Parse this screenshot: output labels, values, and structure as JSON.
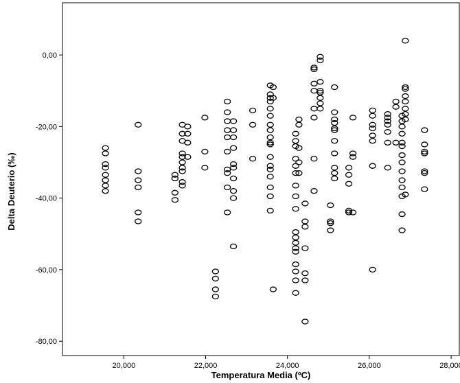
{
  "chart_data": {
    "type": "scatter",
    "title": "",
    "xlabel": "Temperatura Media (ºC)",
    "ylabel": "Delta Deuterio (‰)",
    "xlim": [
      18500,
      28200
    ],
    "ylim": [
      -84,
      14.6
    ],
    "xticks": [
      20000,
      22000,
      24000,
      26000,
      28000
    ],
    "xtick_labels": [
      "20,000",
      "22,000",
      "24,000",
      "26,000",
      "28,000"
    ],
    "yticks": [
      0,
      -20,
      -40,
      -60,
      -80
    ],
    "ytick_labels": [
      "0,00",
      "-20,00",
      "-40,00",
      "-60,00",
      "-80,00"
    ],
    "grid": false,
    "marker": "open-circle",
    "series": [
      {
        "points": [
          [
            19550,
            -26
          ],
          [
            19550,
            -27.5
          ],
          [
            19550,
            -30.5
          ],
          [
            19550,
            -31.5
          ],
          [
            19550,
            -33.5
          ],
          [
            19550,
            -35
          ],
          [
            19550,
            -36.5
          ],
          [
            19550,
            -38
          ],
          [
            20350,
            -19.5
          ],
          [
            20350,
            -32.5
          ],
          [
            20350,
            -35
          ],
          [
            20350,
            -37
          ],
          [
            20350,
            -44
          ],
          [
            20350,
            -46.5
          ],
          [
            21250,
            -33.5
          ],
          [
            21250,
            -34.5
          ],
          [
            21250,
            -38.5
          ],
          [
            21250,
            -40.5
          ],
          [
            21430,
            -19.5
          ],
          [
            21430,
            -22
          ],
          [
            21430,
            -24
          ],
          [
            21430,
            -27.5
          ],
          [
            21430,
            -28.5
          ],
          [
            21430,
            -30
          ],
          [
            21430,
            -31.5
          ],
          [
            21430,
            -32.5
          ],
          [
            21430,
            -35.5
          ],
          [
            21430,
            -36.5
          ],
          [
            21560,
            -20
          ],
          [
            21560,
            -22
          ],
          [
            21560,
            -24.5
          ],
          [
            21560,
            -28.5
          ],
          [
            21980,
            -17.5
          ],
          [
            21980,
            -27
          ],
          [
            21980,
            -31.5
          ],
          [
            22240,
            -60.5
          ],
          [
            22240,
            -62.5
          ],
          [
            22240,
            -65.5
          ],
          [
            22240,
            -67.5
          ],
          [
            22530,
            -13
          ],
          [
            22530,
            -16
          ],
          [
            22530,
            -18.5
          ],
          [
            22530,
            -21
          ],
          [
            22530,
            -23
          ],
          [
            22530,
            -27
          ],
          [
            22530,
            -32
          ],
          [
            22530,
            -33
          ],
          [
            22530,
            -37
          ],
          [
            22530,
            -44
          ],
          [
            22680,
            -18.5
          ],
          [
            22680,
            -21
          ],
          [
            22680,
            -23
          ],
          [
            22680,
            -26
          ],
          [
            22680,
            -30.5
          ],
          [
            22680,
            -31.5
          ],
          [
            22680,
            -34.5
          ],
          [
            22680,
            -38
          ],
          [
            22680,
            -40
          ],
          [
            22680,
            -53.5
          ],
          [
            23150,
            -15.5
          ],
          [
            23150,
            -19.5
          ],
          [
            23150,
            -29
          ],
          [
            23580,
            -8.5
          ],
          [
            23580,
            -11
          ],
          [
            23580,
            -12
          ],
          [
            23580,
            -13
          ],
          [
            23580,
            -15
          ],
          [
            23580,
            -17
          ],
          [
            23580,
            -19.5
          ],
          [
            23580,
            -21
          ],
          [
            23580,
            -23
          ],
          [
            23580,
            -24.5
          ],
          [
            23580,
            -25
          ],
          [
            23580,
            -28.5
          ],
          [
            23580,
            -31
          ],
          [
            23580,
            -32
          ],
          [
            23580,
            -34
          ],
          [
            23580,
            -37
          ],
          [
            23580,
            -39.5
          ],
          [
            23580,
            -43.5
          ],
          [
            23650,
            -9
          ],
          [
            23650,
            -12
          ],
          [
            23650,
            -65.5
          ],
          [
            24200,
            -22
          ],
          [
            24200,
            -24
          ],
          [
            24200,
            -25.5
          ],
          [
            24200,
            -29
          ],
          [
            24200,
            -31
          ],
          [
            24200,
            -33
          ],
          [
            24200,
            -36.5
          ],
          [
            24200,
            -39.5
          ],
          [
            24200,
            -43
          ],
          [
            24200,
            -49.5
          ],
          [
            24200,
            -51
          ],
          [
            24200,
            -52.5
          ],
          [
            24200,
            -54
          ],
          [
            24200,
            -55
          ],
          [
            24200,
            -58.5
          ],
          [
            24200,
            -60.5
          ],
          [
            24200,
            -63
          ],
          [
            24200,
            -66.5
          ],
          [
            24280,
            -18
          ],
          [
            24280,
            -19.5
          ],
          [
            24280,
            -26
          ],
          [
            24280,
            -30
          ],
          [
            24280,
            -33
          ],
          [
            24430,
            -41.5
          ],
          [
            24430,
            -46.5
          ],
          [
            24430,
            -48
          ],
          [
            24430,
            -54
          ],
          [
            24430,
            -61
          ],
          [
            24430,
            -63
          ],
          [
            24430,
            -74.5
          ],
          [
            24650,
            -3.5
          ],
          [
            24650,
            -4
          ],
          [
            24650,
            -8
          ],
          [
            24650,
            -10
          ],
          [
            24650,
            -15
          ],
          [
            24650,
            -17.5
          ],
          [
            24650,
            -29
          ],
          [
            24650,
            -38
          ],
          [
            24800,
            -0.5
          ],
          [
            24800,
            -1.5
          ],
          [
            24800,
            -7.5
          ],
          [
            24800,
            -10
          ],
          [
            24800,
            -10.5
          ],
          [
            24800,
            -12
          ],
          [
            24800,
            -13.5
          ],
          [
            24800,
            -15
          ],
          [
            25050,
            -42
          ],
          [
            25050,
            -46.5
          ],
          [
            25050,
            -47
          ],
          [
            25050,
            -49
          ],
          [
            25150,
            -9
          ],
          [
            25150,
            -16
          ],
          [
            25150,
            -18
          ],
          [
            25150,
            -19
          ],
          [
            25150,
            -20.5
          ],
          [
            25150,
            -21
          ],
          [
            25150,
            -24
          ],
          [
            25150,
            -27.5
          ],
          [
            25150,
            -31.5
          ],
          [
            25150,
            -33
          ],
          [
            25150,
            -34.5
          ],
          [
            25500,
            -31.5
          ],
          [
            25500,
            -33.5
          ],
          [
            25500,
            -36
          ],
          [
            25500,
            -43.5
          ],
          [
            25500,
            -44
          ],
          [
            25600,
            -17.5
          ],
          [
            25600,
            -27.5
          ],
          [
            25600,
            -28.5
          ],
          [
            25600,
            -44
          ],
          [
            26080,
            -15.5
          ],
          [
            26080,
            -17
          ],
          [
            26080,
            -19.5
          ],
          [
            26080,
            -20.5
          ],
          [
            26080,
            -22.5
          ],
          [
            26080,
            -24
          ],
          [
            26080,
            -31
          ],
          [
            26080,
            -60
          ],
          [
            26450,
            -16.5
          ],
          [
            26450,
            -17.5
          ],
          [
            26450,
            -18.5
          ],
          [
            26450,
            -19.5
          ],
          [
            26450,
            -21.5
          ],
          [
            26450,
            -24.5
          ],
          [
            26450,
            -31.5
          ],
          [
            26650,
            -13
          ],
          [
            26650,
            -14.5
          ],
          [
            26650,
            -24.5
          ],
          [
            26800,
            -17
          ],
          [
            26800,
            -18.5
          ],
          [
            26800,
            -20
          ],
          [
            26800,
            -22
          ],
          [
            26800,
            -24.5
          ],
          [
            26800,
            -25.5
          ],
          [
            26800,
            -28
          ],
          [
            26800,
            -30
          ],
          [
            26800,
            -32.5
          ],
          [
            26800,
            -35
          ],
          [
            26800,
            -37
          ],
          [
            26800,
            -39.5
          ],
          [
            26800,
            -44.5
          ],
          [
            26800,
            -49
          ],
          [
            26880,
            4
          ],
          [
            26880,
            -9
          ],
          [
            26880,
            -9.5
          ],
          [
            26880,
            -11.5
          ],
          [
            26880,
            -13
          ],
          [
            26880,
            -15
          ],
          [
            26880,
            -16.5
          ],
          [
            26880,
            -18
          ],
          [
            26880,
            -39
          ],
          [
            27350,
            -21
          ],
          [
            27350,
            -25
          ],
          [
            27350,
            -27
          ],
          [
            27350,
            -27.5
          ],
          [
            27350,
            -32.5
          ],
          [
            27350,
            -33
          ],
          [
            27350,
            -37.5
          ]
        ]
      }
    ]
  }
}
